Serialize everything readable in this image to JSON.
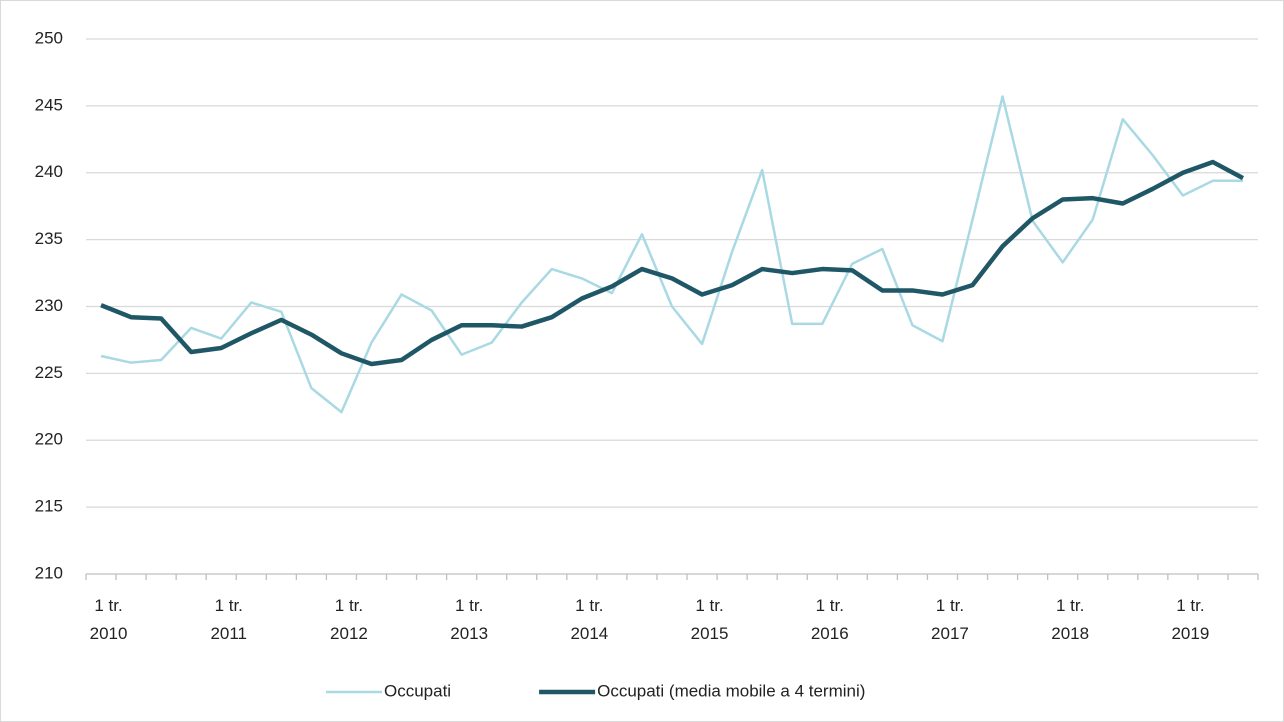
{
  "chart_data": {
    "type": "line",
    "categories": [
      [
        "1 tr.",
        "2010"
      ],
      null,
      null,
      null,
      [
        "1 tr.",
        "2011"
      ],
      null,
      null,
      null,
      [
        "1 tr.",
        "2012"
      ],
      null,
      null,
      null,
      [
        "1 tr.",
        "2013"
      ],
      null,
      null,
      null,
      [
        "1 tr.",
        "2014"
      ],
      null,
      null,
      null,
      [
        "1 tr.",
        "2015"
      ],
      null,
      null,
      null,
      [
        "1 tr.",
        "2016"
      ],
      null,
      null,
      null,
      [
        "1 tr.",
        "2017"
      ],
      null,
      null,
      null,
      [
        "1 tr.",
        "2018"
      ],
      null,
      null,
      null,
      [
        "1 tr.",
        "2019"
      ],
      null,
      null
    ],
    "series": [
      {
        "name": "Occupati",
        "color": "#a9d9e3",
        "width": 2.5,
        "values": [
          226.3,
          225.8,
          226.0,
          228.4,
          227.6,
          230.3,
          229.6,
          223.9,
          222.1,
          227.3,
          230.9,
          229.7,
          226.4,
          227.3,
          230.3,
          232.8,
          232.1,
          231.0,
          235.4,
          230.0,
          227.2,
          234.1,
          240.2,
          228.7,
          228.7,
          233.2,
          234.3,
          228.6,
          227.4,
          236.5,
          245.7,
          236.4,
          233.3,
          236.5,
          244.0,
          241.3,
          238.3,
          239.4,
          239.4
        ]
      },
      {
        "name": "Occupati (media mobile a 4 termini)",
        "color": "#1f5766",
        "width": 4.5,
        "values": [
          230.1,
          229.2,
          229.1,
          226.6,
          226.9,
          228.0,
          229.0,
          227.9,
          226.5,
          225.7,
          226.0,
          227.5,
          228.6,
          228.6,
          228.5,
          229.2,
          230.6,
          231.5,
          232.8,
          232.1,
          230.9,
          231.6,
          232.8,
          232.5,
          232.8,
          232.7,
          231.2,
          231.2,
          230.9,
          231.6,
          234.5,
          236.6,
          238.0,
          238.1,
          237.7,
          238.8,
          240.0,
          240.8,
          239.6
        ]
      }
    ],
    "ylim": [
      210,
      250
    ],
    "yticks": [
      210,
      215,
      220,
      225,
      230,
      235,
      240,
      245,
      250
    ],
    "grid": true,
    "legend": "bottom"
  }
}
